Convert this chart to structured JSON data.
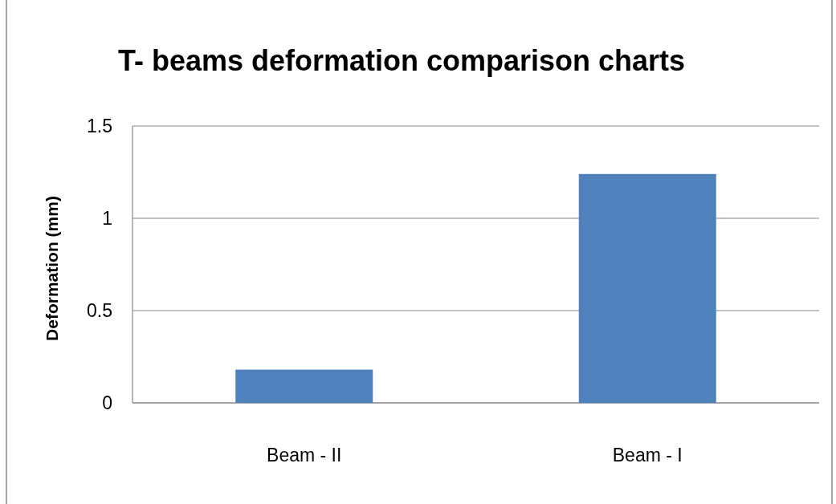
{
  "chart_data": {
    "type": "bar",
    "title": "T- beams deformation  comparison charts",
    "ylabel": "Deformation (mm)",
    "categories": [
      "Beam - II",
      "Beam - I"
    ],
    "values": [
      0.18,
      1.24
    ],
    "color": "#4f81bd",
    "ylim": [
      0,
      1.5
    ],
    "yticks": [
      0,
      0.5,
      1,
      1.5
    ],
    "grid": "y"
  }
}
